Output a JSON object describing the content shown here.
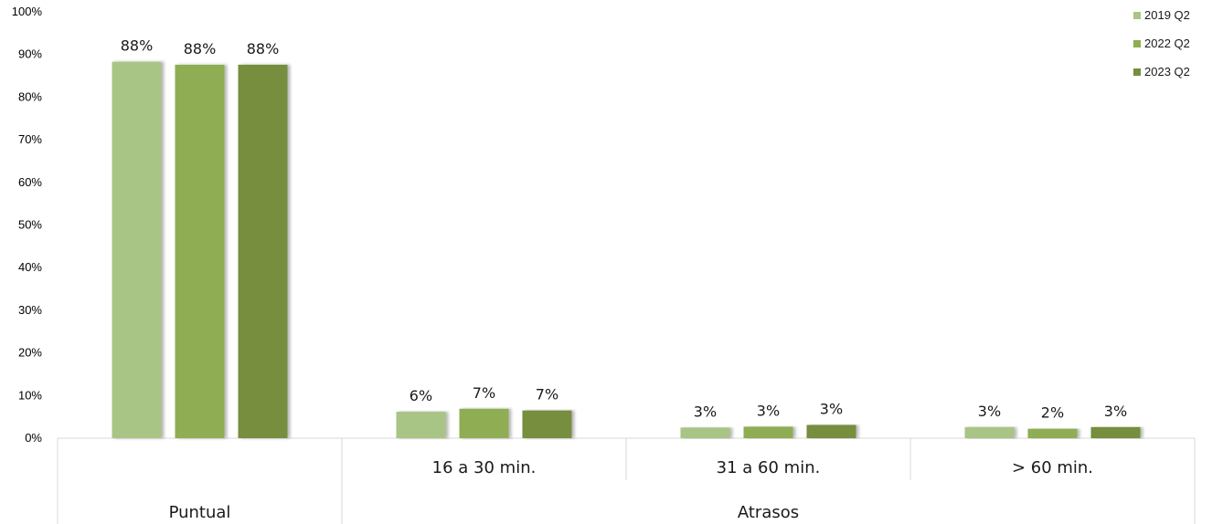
{
  "chart_data": {
    "type": "bar",
    "categories": [
      "",
      "16 a 30 min.",
      "31 a 60 min.",
      "> 60 min."
    ],
    "groups": [
      {
        "label": "Puntual",
        "span": [
          0,
          0
        ]
      },
      {
        "label": "Atrasos",
        "span": [
          1,
          3
        ]
      }
    ],
    "series": [
      {
        "name": "2019 Q2",
        "color": "#a9c585",
        "values": [
          0.883,
          0.062,
          0.025,
          0.026
        ],
        "labels": [
          "88%",
          "6%",
          "3%",
          "3%"
        ]
      },
      {
        "name": "2022 Q2",
        "color": "#8fae52",
        "values": [
          0.876,
          0.069,
          0.027,
          0.022
        ],
        "labels": [
          "88%",
          "7%",
          "3%",
          "2%"
        ]
      },
      {
        "name": "2023 Q2",
        "color": "#768e3e",
        "values": [
          0.876,
          0.065,
          0.031,
          0.026
        ],
        "labels": [
          "88%",
          "7%",
          "3%",
          "3%"
        ]
      }
    ],
    "ylim": [
      0,
      1
    ],
    "yticks": [
      {
        "v": 0,
        "label": "0%"
      },
      {
        "v": 0.1,
        "label": "10%"
      },
      {
        "v": 0.2,
        "label": "20%"
      },
      {
        "v": 0.3,
        "label": "30%"
      },
      {
        "v": 0.4,
        "label": "40%"
      },
      {
        "v": 0.5,
        "label": "50%"
      },
      {
        "v": 0.6,
        "label": "60%"
      },
      {
        "v": 0.7,
        "label": "70%"
      },
      {
        "v": 0.8,
        "label": "80%"
      },
      {
        "v": 0.9,
        "label": "90%"
      },
      {
        "v": 1.0,
        "label": "100%"
      }
    ],
    "grid": false,
    "legend": "top-right"
  }
}
